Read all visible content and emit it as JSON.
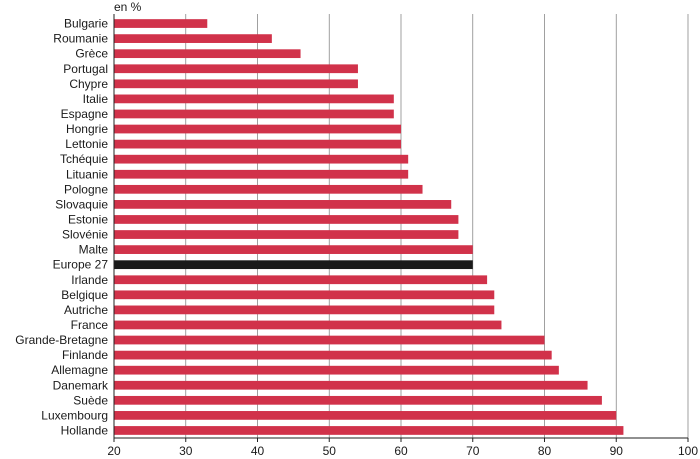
{
  "chart_data": {
    "type": "bar",
    "orientation": "horizontal",
    "unit_label": "en %",
    "categories": [
      "Bulgarie",
      "Roumanie",
      "Grèce",
      "Portugal",
      "Chypre",
      "Italie",
      "Espagne",
      "Hongrie",
      "Lettonie",
      "Tchéquie",
      "Lituanie",
      "Pologne",
      "Slovaquie",
      "Estonie",
      "Slovénie",
      "Malte",
      "Europe 27",
      "Irlande",
      "Belgique",
      "Autriche",
      "France",
      "Grande-Bretagne",
      "Finlande",
      "Allemagne",
      "Danemark",
      "Suède",
      "Luxembourg",
      "Hollande"
    ],
    "values": [
      33,
      42,
      46,
      54,
      54,
      59,
      59,
      60,
      60,
      61,
      61,
      63,
      67,
      68,
      68,
      70,
      70,
      72,
      73,
      73,
      74,
      80,
      81,
      82,
      86,
      88,
      90,
      91
    ],
    "highlight": "Europe 27",
    "xlim": [
      20,
      100
    ],
    "xticks": [
      20,
      30,
      40,
      50,
      60,
      70,
      80,
      90,
      100
    ],
    "grid": true,
    "colors": {
      "bar": "#d1324a",
      "highlight": "#1a1a1a",
      "grid": "#888888",
      "axis": "#222222"
    }
  }
}
